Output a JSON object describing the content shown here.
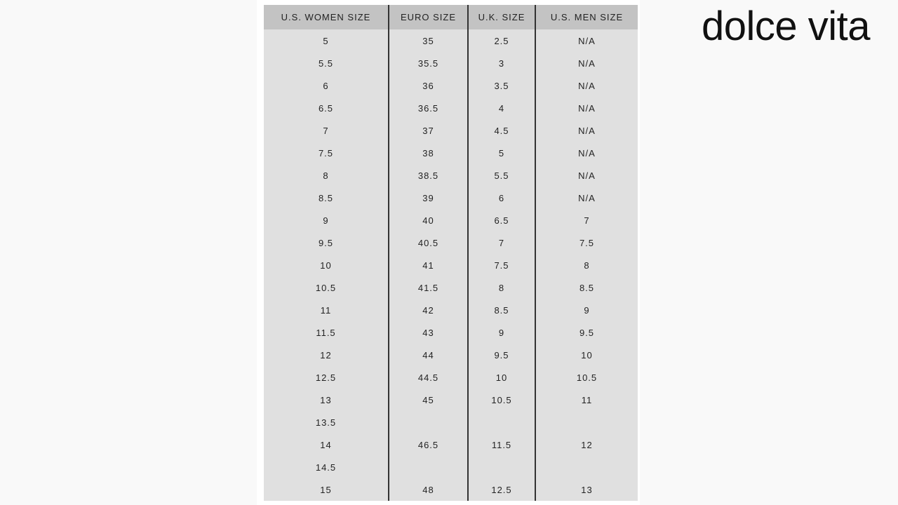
{
  "brand": {
    "logo_text": "dolce vita"
  },
  "size_chart": {
    "headers": [
      "U.S. WOMEN SIZE",
      "EURO SIZE",
      "U.K. SIZE",
      "U.S. MEN SIZE"
    ],
    "rows": [
      [
        "5",
        "35",
        "2.5",
        "N/A"
      ],
      [
        "5.5",
        "35.5",
        "3",
        "N/A"
      ],
      [
        "6",
        "36",
        "3.5",
        "N/A"
      ],
      [
        "6.5",
        "36.5",
        "4",
        "N/A"
      ],
      [
        "7",
        "37",
        "4.5",
        "N/A"
      ],
      [
        "7.5",
        "38",
        "5",
        "N/A"
      ],
      [
        "8",
        "38.5",
        "5.5",
        "N/A"
      ],
      [
        "8.5",
        "39",
        "6",
        "N/A"
      ],
      [
        "9",
        "40",
        "6.5",
        "7"
      ],
      [
        "9.5",
        "40.5",
        "7",
        "7.5"
      ],
      [
        "10",
        "41",
        "7.5",
        "8"
      ],
      [
        "10.5",
        "41.5",
        "8",
        "8.5"
      ],
      [
        "11",
        "42",
        "8.5",
        "9"
      ],
      [
        "11.5",
        "43",
        "9",
        "9.5"
      ],
      [
        "12",
        "44",
        "9.5",
        "10"
      ],
      [
        "12.5",
        "44.5",
        "10",
        "10.5"
      ],
      [
        "13",
        "45",
        "10.5",
        "11"
      ],
      [
        "13.5",
        "",
        "",
        ""
      ],
      [
        "14",
        "46.5",
        "11.5",
        "12"
      ],
      [
        "14.5",
        "",
        "",
        ""
      ],
      [
        "15",
        "48",
        "12.5",
        "13"
      ]
    ]
  }
}
